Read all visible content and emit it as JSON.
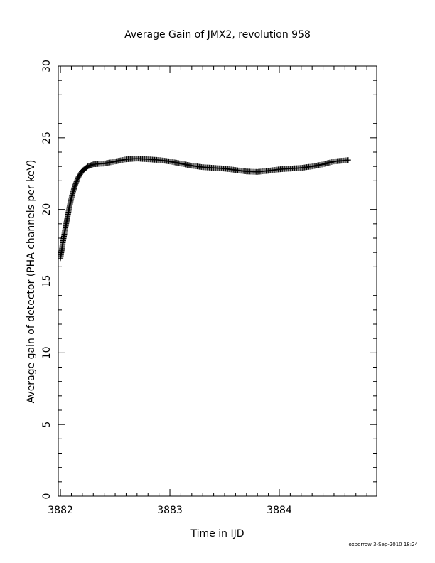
{
  "chart_data": {
    "type": "scatter",
    "marker": "plus",
    "title": "Average Gain of JMX2, revolution 958",
    "xlabel": "Time in IJD",
    "ylabel": "Average gain of detector (PHA channels per keV)",
    "xlim": [
      3881.98,
      3884.89
    ],
    "ylim": [
      0,
      30
    ],
    "xticks": [
      3882,
      3883,
      3884
    ],
    "yticks": [
      0,
      5,
      10,
      15,
      20,
      25,
      30
    ],
    "x_minor_step": 0.1,
    "y_minor_step": 1,
    "grid": false,
    "curve": [
      [
        3882.0,
        16.6
      ],
      [
        3882.02,
        17.6
      ],
      [
        3882.04,
        18.5
      ],
      [
        3882.06,
        19.3
      ],
      [
        3882.08,
        20.1
      ],
      [
        3882.1,
        20.8
      ],
      [
        3882.13,
        21.6
      ],
      [
        3882.16,
        22.2
      ],
      [
        3882.2,
        22.7
      ],
      [
        3882.25,
        23.0
      ],
      [
        3882.3,
        23.15
      ],
      [
        3882.4,
        23.2
      ],
      [
        3882.5,
        23.35
      ],
      [
        3882.6,
        23.5
      ],
      [
        3882.7,
        23.55
      ],
      [
        3882.8,
        23.5
      ],
      [
        3882.9,
        23.45
      ],
      [
        3883.0,
        23.35
      ],
      [
        3883.1,
        23.2
      ],
      [
        3883.2,
        23.05
      ],
      [
        3883.3,
        22.95
      ],
      [
        3883.4,
        22.9
      ],
      [
        3883.5,
        22.85
      ],
      [
        3883.6,
        22.75
      ],
      [
        3883.7,
        22.65
      ],
      [
        3883.8,
        22.62
      ],
      [
        3883.9,
        22.7
      ],
      [
        3884.0,
        22.8
      ],
      [
        3884.1,
        22.85
      ],
      [
        3884.2,
        22.9
      ],
      [
        3884.3,
        23.0
      ],
      [
        3884.4,
        23.15
      ],
      [
        3884.5,
        23.35
      ],
      [
        3884.6,
        23.42
      ],
      [
        3884.63,
        23.45
      ]
    ]
  },
  "footer": {
    "credit": "oxborrow  3-Sep-2010 18:24"
  }
}
